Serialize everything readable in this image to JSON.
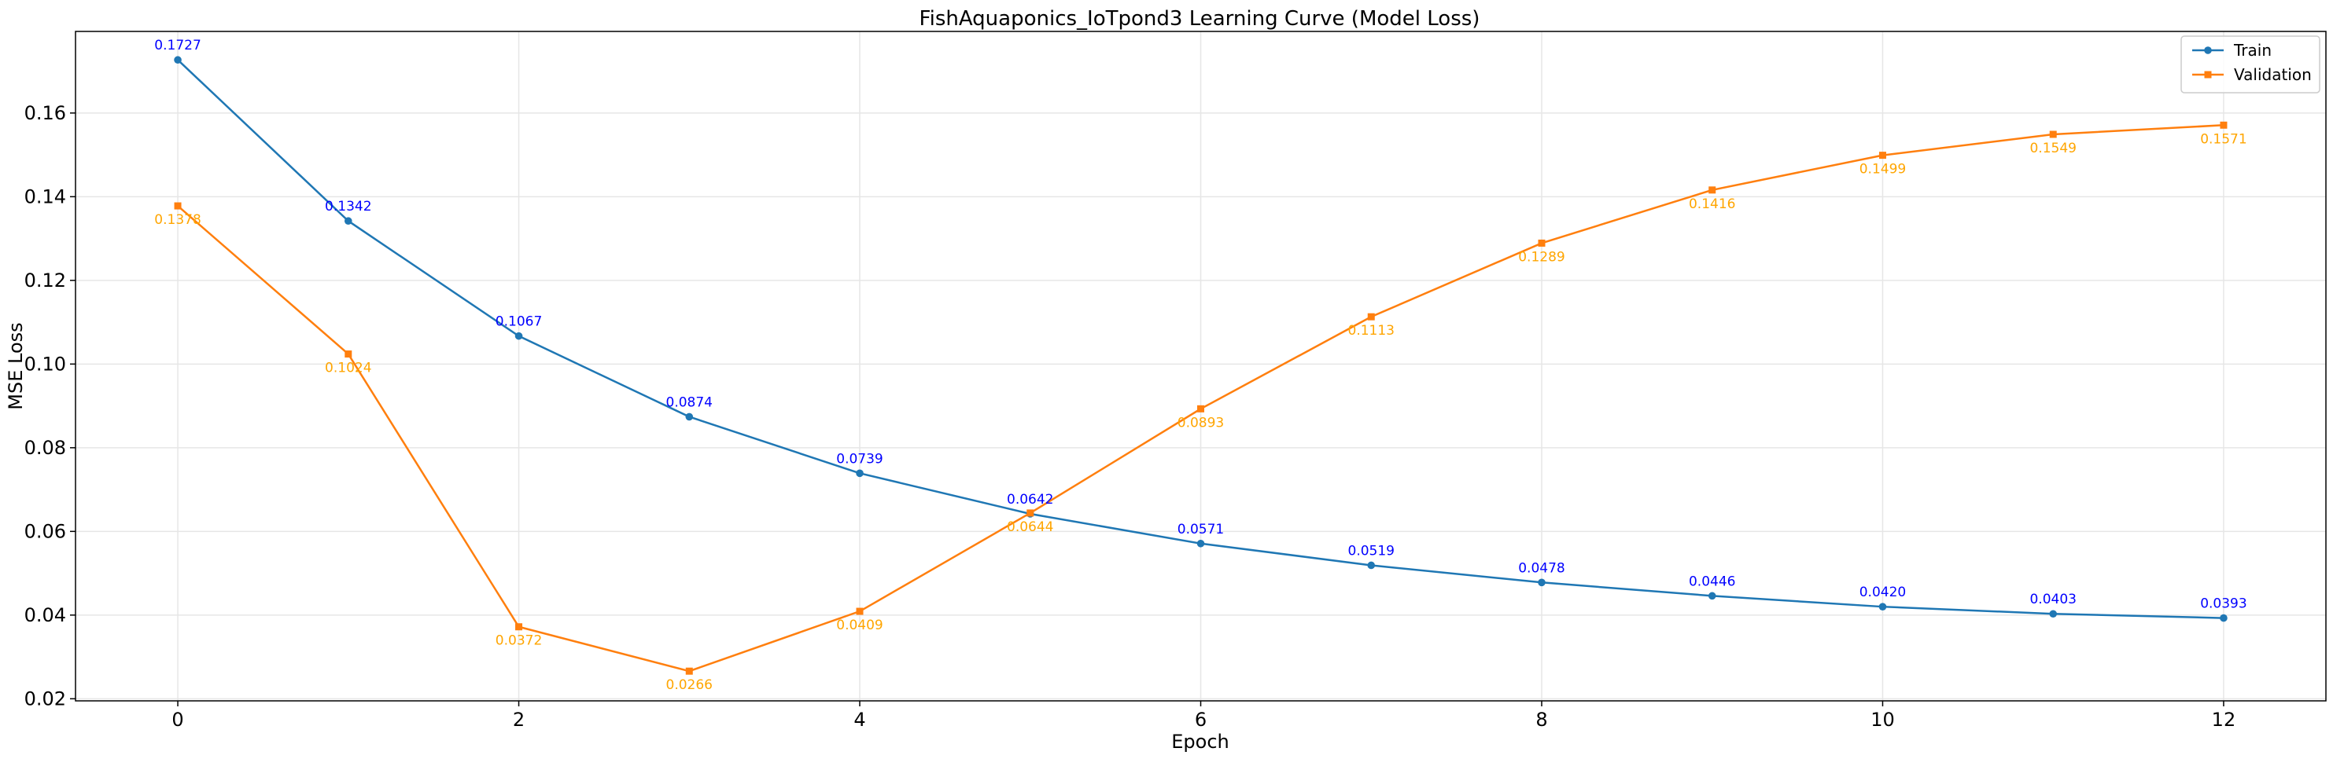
{
  "chart_data": {
    "type": "line",
    "title": "FishAquaponics_IoTpond3 Learning Curve (Model Loss)",
    "xlabel": "Epoch",
    "ylabel": "MSE Loss",
    "x": [
      0,
      1,
      2,
      3,
      4,
      5,
      6,
      7,
      8,
      9,
      10,
      11,
      12
    ],
    "xlim": [
      -0.6,
      12.6
    ],
    "ylim": [
      0.0195,
      0.1795
    ],
    "xticks": [
      0,
      2,
      4,
      6,
      8,
      10,
      12
    ],
    "yticks": [
      0.02,
      0.04,
      0.06,
      0.08,
      0.1,
      0.12,
      0.14,
      0.16
    ],
    "ytick_labels": [
      "0.02",
      "0.04",
      "0.06",
      "0.08",
      "0.10",
      "0.12",
      "0.14",
      "0.16"
    ],
    "grid": true,
    "legend_position": "top-right",
    "series": [
      {
        "name": "Train",
        "color": "#1f77b4",
        "label_color": "#0000ff",
        "marker": "circle",
        "label_position": "above",
        "values": [
          0.1727,
          0.1342,
          0.1067,
          0.0874,
          0.0739,
          0.0642,
          0.0571,
          0.0519,
          0.0478,
          0.0446,
          0.042,
          0.0403,
          0.0393
        ],
        "labels": [
          "0.1727",
          "0.1342",
          "0.1067",
          "0.0874",
          "0.0739",
          "0.0642",
          "0.0571",
          "0.0519",
          "0.0478",
          "0.0446",
          "0.0420",
          "0.0403",
          "0.0393"
        ]
      },
      {
        "name": "Validation",
        "color": "#ff7f0e",
        "label_color": "#ffa500",
        "marker": "square",
        "label_position": "below",
        "values": [
          0.1378,
          0.1024,
          0.0372,
          0.0266,
          0.0409,
          0.0644,
          0.0893,
          0.1113,
          0.1289,
          0.1416,
          0.1499,
          0.1549,
          0.1571
        ],
        "labels": [
          "0.1378",
          "0.1024",
          "0.0372",
          "0.0266",
          "0.0409",
          "0.0644",
          "0.0893",
          "0.1113",
          "0.1289",
          "0.1416",
          "0.1499",
          "0.1549",
          "0.1571"
        ]
      }
    ]
  }
}
